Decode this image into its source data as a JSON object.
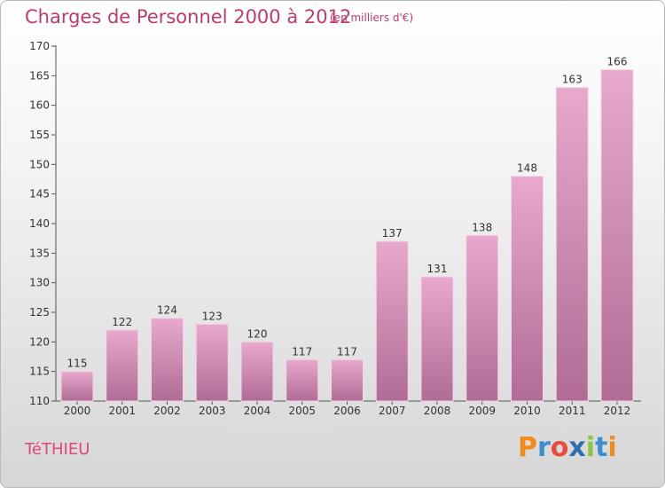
{
  "header": {
    "title": "Charges de Personnel 2000 à 2012",
    "subtitle": "(en milliers d'€)"
  },
  "footer": {
    "commune": "TéTHIEU",
    "logo_text": "Proxiti"
  },
  "colors": {
    "title": "#c23a6c",
    "bar_top": "#e8a9cd",
    "bar_bottom": "#b06c95"
  },
  "chart_data": {
    "type": "bar",
    "categories": [
      "2000",
      "2001",
      "2002",
      "2003",
      "2004",
      "2005",
      "2006",
      "2007",
      "2008",
      "2009",
      "2010",
      "2011",
      "2012"
    ],
    "values": [
      115,
      122,
      124,
      123,
      120,
      117,
      117,
      137,
      131,
      138,
      148,
      163,
      166
    ],
    "ylim": [
      110,
      170
    ],
    "yticks": [
      110,
      115,
      120,
      125,
      130,
      135,
      140,
      145,
      150,
      155,
      160,
      165,
      170
    ],
    "grid": false,
    "data_labels": true
  }
}
